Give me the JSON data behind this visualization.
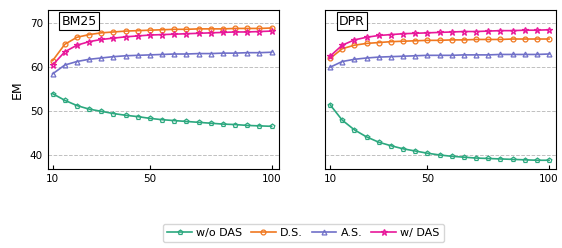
{
  "x_vals": [
    10,
    15,
    20,
    25,
    30,
    35,
    40,
    45,
    50,
    55,
    60,
    65,
    70,
    75,
    80,
    85,
    90,
    95,
    100
  ],
  "bm25": {
    "wo_das": [
      54.0,
      52.5,
      51.3,
      50.5,
      50.0,
      49.5,
      49.1,
      48.8,
      48.4,
      48.1,
      47.9,
      47.7,
      47.5,
      47.3,
      47.1,
      47.0,
      46.8,
      46.7,
      46.6
    ],
    "ds": [
      61.5,
      65.2,
      66.8,
      67.4,
      67.8,
      68.0,
      68.2,
      68.3,
      68.4,
      68.5,
      68.6,
      68.6,
      68.7,
      68.7,
      68.7,
      68.8,
      68.8,
      68.8,
      68.9
    ],
    "as": [
      58.5,
      60.5,
      61.3,
      61.8,
      62.1,
      62.4,
      62.6,
      62.7,
      62.8,
      62.9,
      63.0,
      63.0,
      63.1,
      63.1,
      63.2,
      63.2,
      63.3,
      63.3,
      63.4
    ],
    "w_das": [
      60.5,
      63.5,
      65.0,
      65.8,
      66.3,
      66.6,
      66.9,
      67.1,
      67.3,
      67.4,
      67.5,
      67.6,
      67.7,
      67.8,
      67.9,
      68.0,
      68.0,
      68.1,
      68.2
    ]
  },
  "dpr": {
    "wo_das": [
      51.5,
      48.0,
      45.8,
      44.2,
      43.0,
      42.2,
      41.5,
      41.0,
      40.5,
      40.1,
      39.8,
      39.6,
      39.4,
      39.3,
      39.2,
      39.1,
      39.0,
      38.9,
      38.9
    ],
    "ds": [
      62.0,
      64.2,
      65.0,
      65.4,
      65.6,
      65.8,
      65.9,
      66.0,
      66.1,
      66.1,
      66.2,
      66.2,
      66.3,
      66.3,
      66.3,
      66.4,
      66.4,
      66.4,
      66.4
    ],
    "as": [
      60.0,
      61.3,
      61.8,
      62.1,
      62.3,
      62.4,
      62.5,
      62.6,
      62.7,
      62.7,
      62.7,
      62.8,
      62.8,
      62.8,
      62.9,
      62.9,
      62.9,
      62.9,
      63.0
    ],
    "w_das": [
      62.5,
      65.0,
      66.2,
      66.8,
      67.2,
      67.4,
      67.6,
      67.7,
      67.8,
      67.9,
      68.0,
      68.1,
      68.1,
      68.2,
      68.3,
      68.3,
      68.4,
      68.4,
      68.5
    ]
  },
  "colors": {
    "wo_das": "#2ca87f",
    "ds": "#f07820",
    "as": "#7070c8",
    "w_das": "#e8189a"
  },
  "ylim": [
    37,
    73
  ],
  "yticks": [
    40,
    50,
    60,
    70
  ],
  "xticks": [
    10,
    50,
    100
  ],
  "ylabel": "EM",
  "title_bm25": "BM25",
  "title_dpr": "DPR",
  "legend_labels": [
    "w/o DAS",
    "D.S.",
    "A.S.",
    "w/ DAS"
  ]
}
